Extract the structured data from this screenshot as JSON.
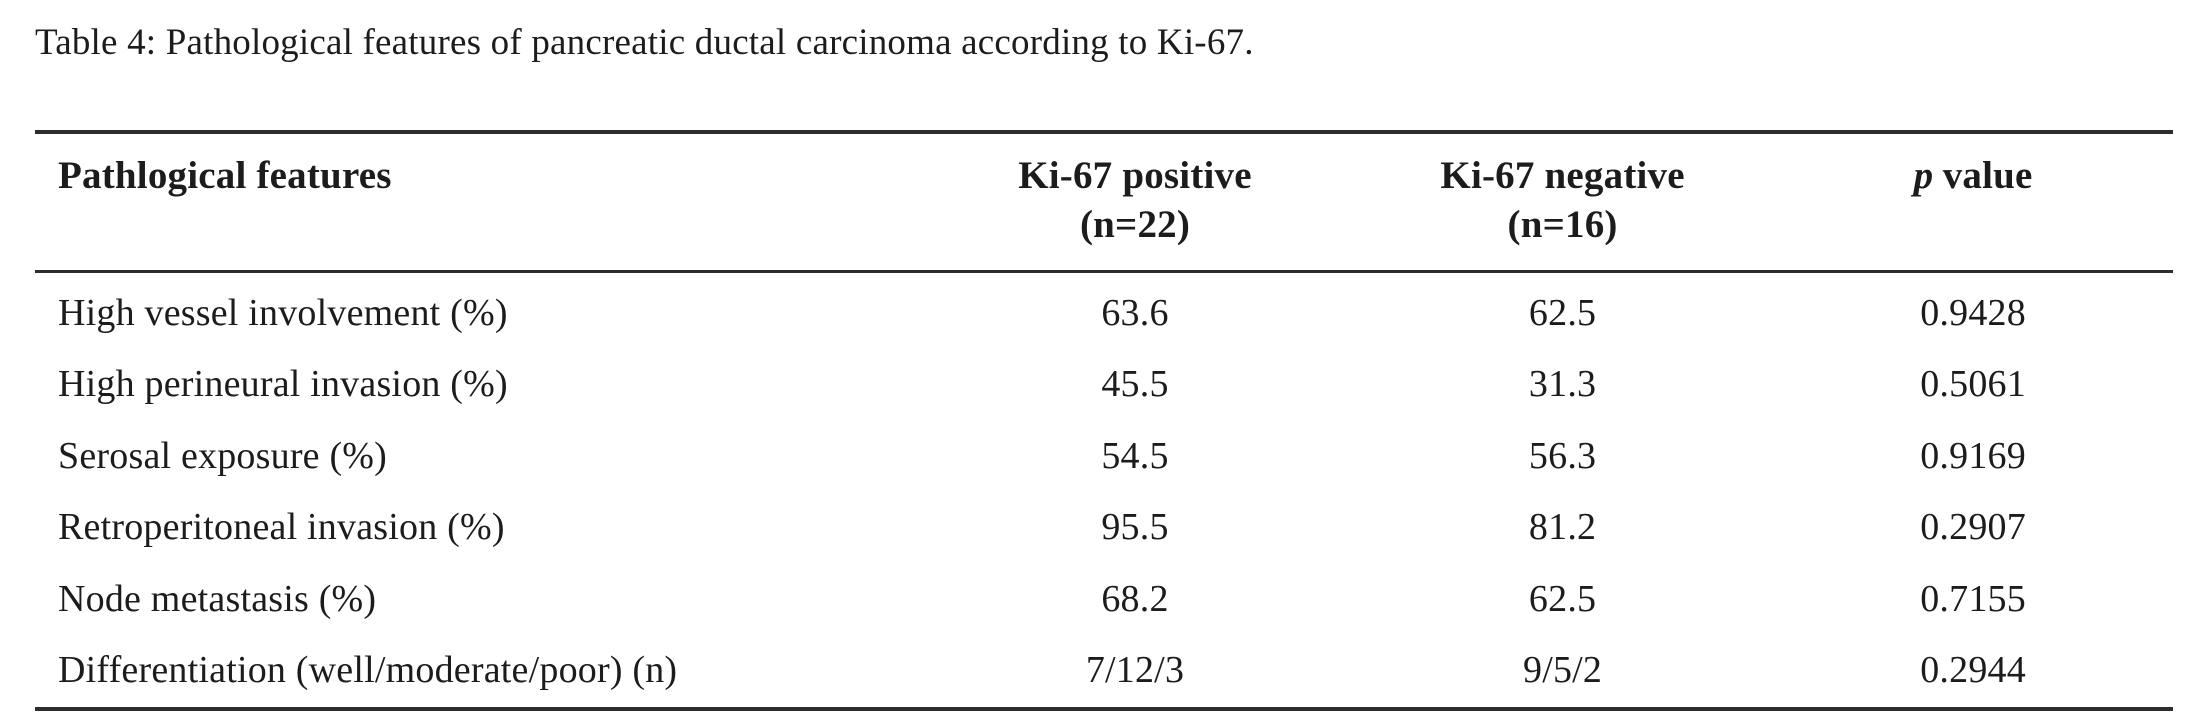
{
  "caption": "Table 4: Pathological features of pancreatic ductal carcinoma according to Ki-67.",
  "colors": {
    "background": "#ffffff",
    "text": "#1c1c1c",
    "rule": "#2d2d2d"
  },
  "table": {
    "headers": {
      "feature": "Pathlogical features",
      "positive_line1": "Ki-67 positive",
      "positive_line2": "(n=22)",
      "negative_line1": "Ki-67 negative",
      "negative_line2": "(n=16)",
      "p_italic": "p",
      "p_rest": "value"
    },
    "rows": [
      {
        "feature": "High vessel involvement (%)",
        "positive": "63.6",
        "negative": "62.5",
        "p": "0.9428"
      },
      {
        "feature": "High perineural invasion (%)",
        "positive": "45.5",
        "negative": "31.3",
        "p": "0.5061"
      },
      {
        "feature": "Serosal exposure (%)",
        "positive": "54.5",
        "negative": "56.3",
        "p": "0.9169"
      },
      {
        "feature": "Retroperitoneal invasion (%)",
        "positive": "95.5",
        "negative": "81.2",
        "p": "0.2907"
      },
      {
        "feature": "Node metastasis (%)",
        "positive": "68.2",
        "negative": "62.5",
        "p": "0.7155"
      },
      {
        "feature": "Differentiation (well/moderate/poor) (n)",
        "positive": "7/12/3",
        "negative": "9/5/2",
        "p": "0.2944"
      }
    ]
  },
  "chart_data": {
    "type": "table",
    "title": "Table 4: Pathological features of pancreatic ductal carcinoma according to Ki-67.",
    "columns": [
      "Pathlogical features",
      "Ki-67 positive (n=22)",
      "Ki-67 negative (n=16)",
      "p value"
    ],
    "rows": [
      [
        "High vessel involvement (%)",
        "63.6",
        "62.5",
        "0.9428"
      ],
      [
        "High perineural invasion (%)",
        "45.5",
        "31.3",
        "0.5061"
      ],
      [
        "Serosal exposure (%)",
        "54.5",
        "56.3",
        "0.9169"
      ],
      [
        "Retroperitoneal invasion (%)",
        "95.5",
        "81.2",
        "0.2907"
      ],
      [
        "Node metastasis (%)",
        "68.2",
        "62.5",
        "0.7155"
      ],
      [
        "Differentiation (well/moderate/poor) (n)",
        "7/12/3",
        "9/5/2",
        "0.2944"
      ]
    ]
  }
}
